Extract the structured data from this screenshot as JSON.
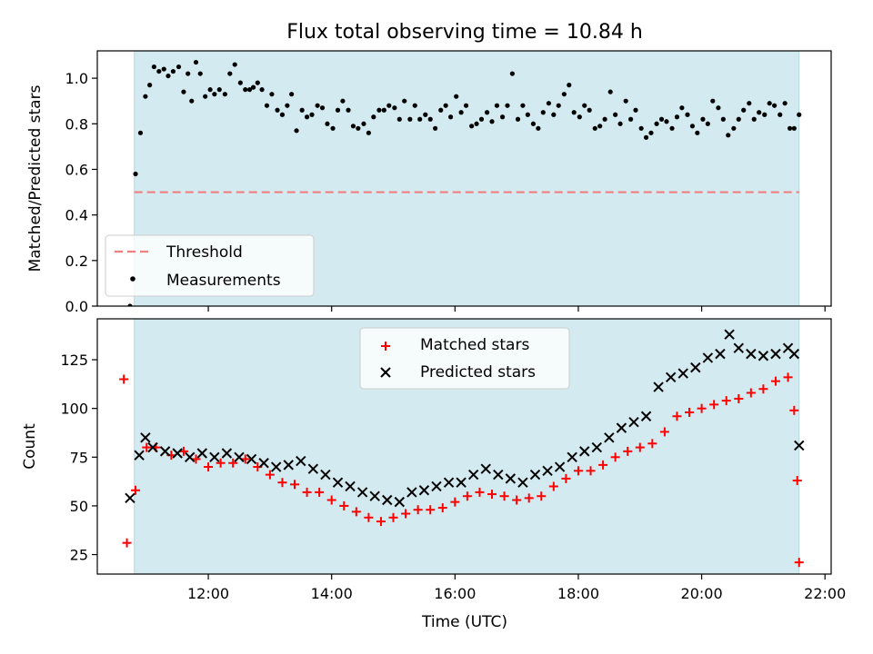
{
  "title": "Flux total observing time = 10.84 h",
  "xlabel": "Time (UTC)",
  "chart_data": [
    {
      "type": "scatter",
      "panel": "top",
      "ylabel": "Matched/Predicted stars",
      "xlim": [
        10.2,
        22.1
      ],
      "ylim": [
        0.0,
        1.12
      ],
      "yticks": [
        0.0,
        0.2,
        0.4,
        0.6,
        0.8,
        1.0
      ],
      "ytick_labels": [
        "0.0",
        "0.2",
        "0.4",
        "0.6",
        "0.8",
        "1.0"
      ],
      "xticks": [
        12,
        14,
        16,
        18,
        20,
        22
      ],
      "shaded_span": [
        10.8,
        21.58
      ],
      "shade_color": "#d3eaf0",
      "threshold": {
        "name": "Threshold",
        "value": 0.5,
        "x_range": [
          10.8,
          21.58
        ],
        "color": "#f08080",
        "style": "dashed"
      },
      "legend": {
        "placement": "lower-left",
        "entries": [
          "Threshold",
          "Measurements"
        ]
      },
      "series": [
        {
          "name": "Measurements",
          "color": "#000000",
          "marker": "dot",
          "x": [
            10.73,
            10.82,
            10.9,
            10.98,
            11.05,
            11.12,
            11.2,
            11.28,
            11.35,
            11.43,
            11.52,
            11.6,
            11.67,
            11.73,
            11.8,
            11.87,
            11.95,
            12.03,
            12.1,
            12.18,
            12.27,
            12.35,
            12.43,
            12.52,
            12.6,
            12.67,
            12.73,
            12.8,
            12.87,
            12.95,
            13.03,
            13.12,
            13.2,
            13.28,
            13.35,
            13.43,
            13.52,
            13.6,
            13.68,
            13.77,
            13.85,
            13.93,
            14.02,
            14.1,
            14.18,
            14.27,
            14.35,
            14.43,
            14.52,
            14.6,
            14.68,
            14.77,
            14.85,
            14.93,
            15.02,
            15.1,
            15.18,
            15.27,
            15.35,
            15.43,
            15.52,
            15.6,
            15.68,
            15.77,
            15.85,
            15.93,
            16.02,
            16.1,
            16.18,
            16.27,
            16.35,
            16.43,
            16.52,
            16.6,
            16.68,
            16.77,
            16.85,
            16.93,
            17.02,
            17.1,
            17.18,
            17.27,
            17.35,
            17.43,
            17.52,
            17.6,
            17.68,
            17.77,
            17.85,
            17.93,
            18.02,
            18.1,
            18.18,
            18.27,
            18.35,
            18.43,
            18.52,
            18.6,
            18.68,
            18.77,
            18.85,
            18.93,
            19.02,
            19.1,
            19.18,
            19.27,
            19.35,
            19.43,
            19.52,
            19.6,
            19.68,
            19.77,
            19.85,
            19.93,
            20.02,
            20.1,
            20.18,
            20.27,
            20.35,
            20.43,
            20.52,
            20.6,
            20.68,
            20.77,
            20.85,
            20.93,
            21.02,
            21.1,
            21.18,
            21.27,
            21.35,
            21.43,
            21.5,
            21.58
          ],
          "y": [
            0.0,
            0.58,
            0.76,
            0.92,
            0.97,
            1.05,
            1.03,
            1.04,
            1.01,
            1.03,
            1.05,
            0.94,
            1.02,
            0.9,
            1.07,
            1.02,
            0.92,
            0.95,
            0.93,
            0.95,
            0.93,
            1.02,
            1.06,
            0.98,
            0.95,
            0.95,
            0.96,
            0.98,
            0.95,
            0.88,
            0.93,
            0.86,
            0.84,
            0.88,
            0.93,
            0.77,
            0.86,
            0.83,
            0.84,
            0.88,
            0.87,
            0.8,
            0.78,
            0.86,
            0.9,
            0.86,
            0.79,
            0.78,
            0.8,
            0.76,
            0.83,
            0.86,
            0.86,
            0.88,
            0.87,
            0.82,
            0.9,
            0.82,
            0.88,
            0.82,
            0.84,
            0.82,
            0.78,
            0.86,
            0.88,
            0.83,
            0.92,
            0.85,
            0.88,
            0.79,
            0.8,
            0.82,
            0.85,
            0.81,
            0.88,
            0.83,
            0.88,
            1.02,
            0.82,
            0.88,
            0.84,
            0.8,
            0.78,
            0.85,
            0.89,
            0.84,
            0.88,
            0.93,
            0.97,
            0.85,
            0.83,
            0.88,
            0.86,
            0.78,
            0.79,
            0.82,
            0.94,
            0.84,
            0.8,
            0.9,
            0.82,
            0.86,
            0.78,
            0.74,
            0.76,
            0.8,
            0.82,
            0.81,
            0.78,
            0.83,
            0.87,
            0.84,
            0.79,
            0.76,
            0.82,
            0.8,
            0.9,
            0.87,
            0.82,
            0.75,
            0.78,
            0.82,
            0.86,
            0.89,
            0.82,
            0.85,
            0.84,
            0.89,
            0.88,
            0.84,
            0.89,
            0.78,
            0.78,
            0.84
          ]
        }
      ]
    },
    {
      "type": "scatter",
      "panel": "bottom",
      "ylabel": "Count",
      "xlabel": "Time (UTC)",
      "xlim": [
        10.2,
        22.1
      ],
      "ylim": [
        15,
        146
      ],
      "yticks": [
        25,
        50,
        75,
        100,
        125
      ],
      "ytick_labels": [
        "25",
        "50",
        "75",
        "100",
        "125"
      ],
      "xticks": [
        12,
        14,
        16,
        18,
        20,
        22
      ],
      "xtick_labels": [
        "12:00",
        "14:00",
        "16:00",
        "18:00",
        "20:00",
        "22:00"
      ],
      "shaded_span": [
        10.8,
        21.58
      ],
      "shade_color": "#d3eaf0",
      "legend": {
        "placement": "upper-center",
        "entries": [
          "Matched stars",
          "Predicted stars"
        ]
      },
      "series": [
        {
          "name": "Matched stars",
          "color": "#ff0000",
          "marker": "plus",
          "x": [
            10.63,
            10.68,
            10.82,
            11.0,
            11.15,
            11.4,
            11.6,
            11.8,
            12.0,
            12.2,
            12.4,
            12.6,
            12.8,
            13.0,
            13.2,
            13.4,
            13.6,
            13.8,
            14.0,
            14.2,
            14.4,
            14.6,
            14.8,
            15.0,
            15.2,
            15.4,
            15.6,
            15.8,
            16.0,
            16.2,
            16.4,
            16.6,
            16.8,
            17.0,
            17.2,
            17.4,
            17.6,
            17.8,
            18.0,
            18.2,
            18.4,
            18.6,
            18.8,
            19.0,
            19.2,
            19.4,
            19.6,
            19.8,
            20.0,
            20.2,
            20.4,
            20.6,
            20.8,
            21.0,
            21.2,
            21.4,
            21.5,
            21.58
          ],
          "y": [
            115,
            31,
            58,
            80,
            80,
            76,
            78,
            74,
            70,
            72,
            72,
            74,
            70,
            66,
            62,
            61,
            57,
            57,
            53,
            50,
            47,
            44,
            42,
            44,
            46,
            48,
            48,
            49,
            52,
            55,
            57,
            56,
            55,
            53,
            54,
            55,
            60,
            64,
            68,
            68,
            71,
            75,
            78,
            80,
            82,
            88,
            96,
            98,
            100,
            102,
            104,
            105,
            108,
            110,
            114,
            116,
            99,
            21
          ],
          "extra_points": [
            [
              21.55,
              63
            ]
          ]
        },
        {
          "name": "Predicted stars",
          "color": "#000000",
          "marker": "x",
          "x": [
            10.73,
            10.88,
            10.98,
            11.1,
            11.3,
            11.5,
            11.7,
            11.9,
            12.1,
            12.3,
            12.5,
            12.7,
            12.9,
            13.1,
            13.3,
            13.5,
            13.7,
            13.9,
            14.1,
            14.3,
            14.5,
            14.7,
            14.9,
            15.1,
            15.3,
            15.5,
            15.7,
            15.9,
            16.1,
            16.3,
            16.5,
            16.7,
            16.9,
            17.1,
            17.3,
            17.5,
            17.7,
            17.9,
            18.1,
            18.3,
            18.5,
            18.7,
            18.9,
            19.1,
            19.3,
            19.5,
            19.7,
            19.9,
            20.1,
            20.3,
            20.45,
            20.6,
            20.8,
            21.0,
            21.2,
            21.4,
            21.5,
            21.58
          ],
          "y": [
            54,
            76,
            85,
            80,
            78,
            77,
            75,
            77,
            75,
            77,
            75,
            74,
            72,
            70,
            71,
            73,
            69,
            66,
            62,
            60,
            57,
            55,
            53,
            52,
            57,
            58,
            60,
            62,
            62,
            66,
            69,
            66,
            64,
            62,
            66,
            68,
            70,
            75,
            78,
            80,
            85,
            90,
            93,
            96,
            111,
            116,
            118,
            121,
            126,
            128,
            138,
            131,
            128,
            127,
            128,
            131,
            128,
            81
          ]
        }
      ]
    }
  ]
}
